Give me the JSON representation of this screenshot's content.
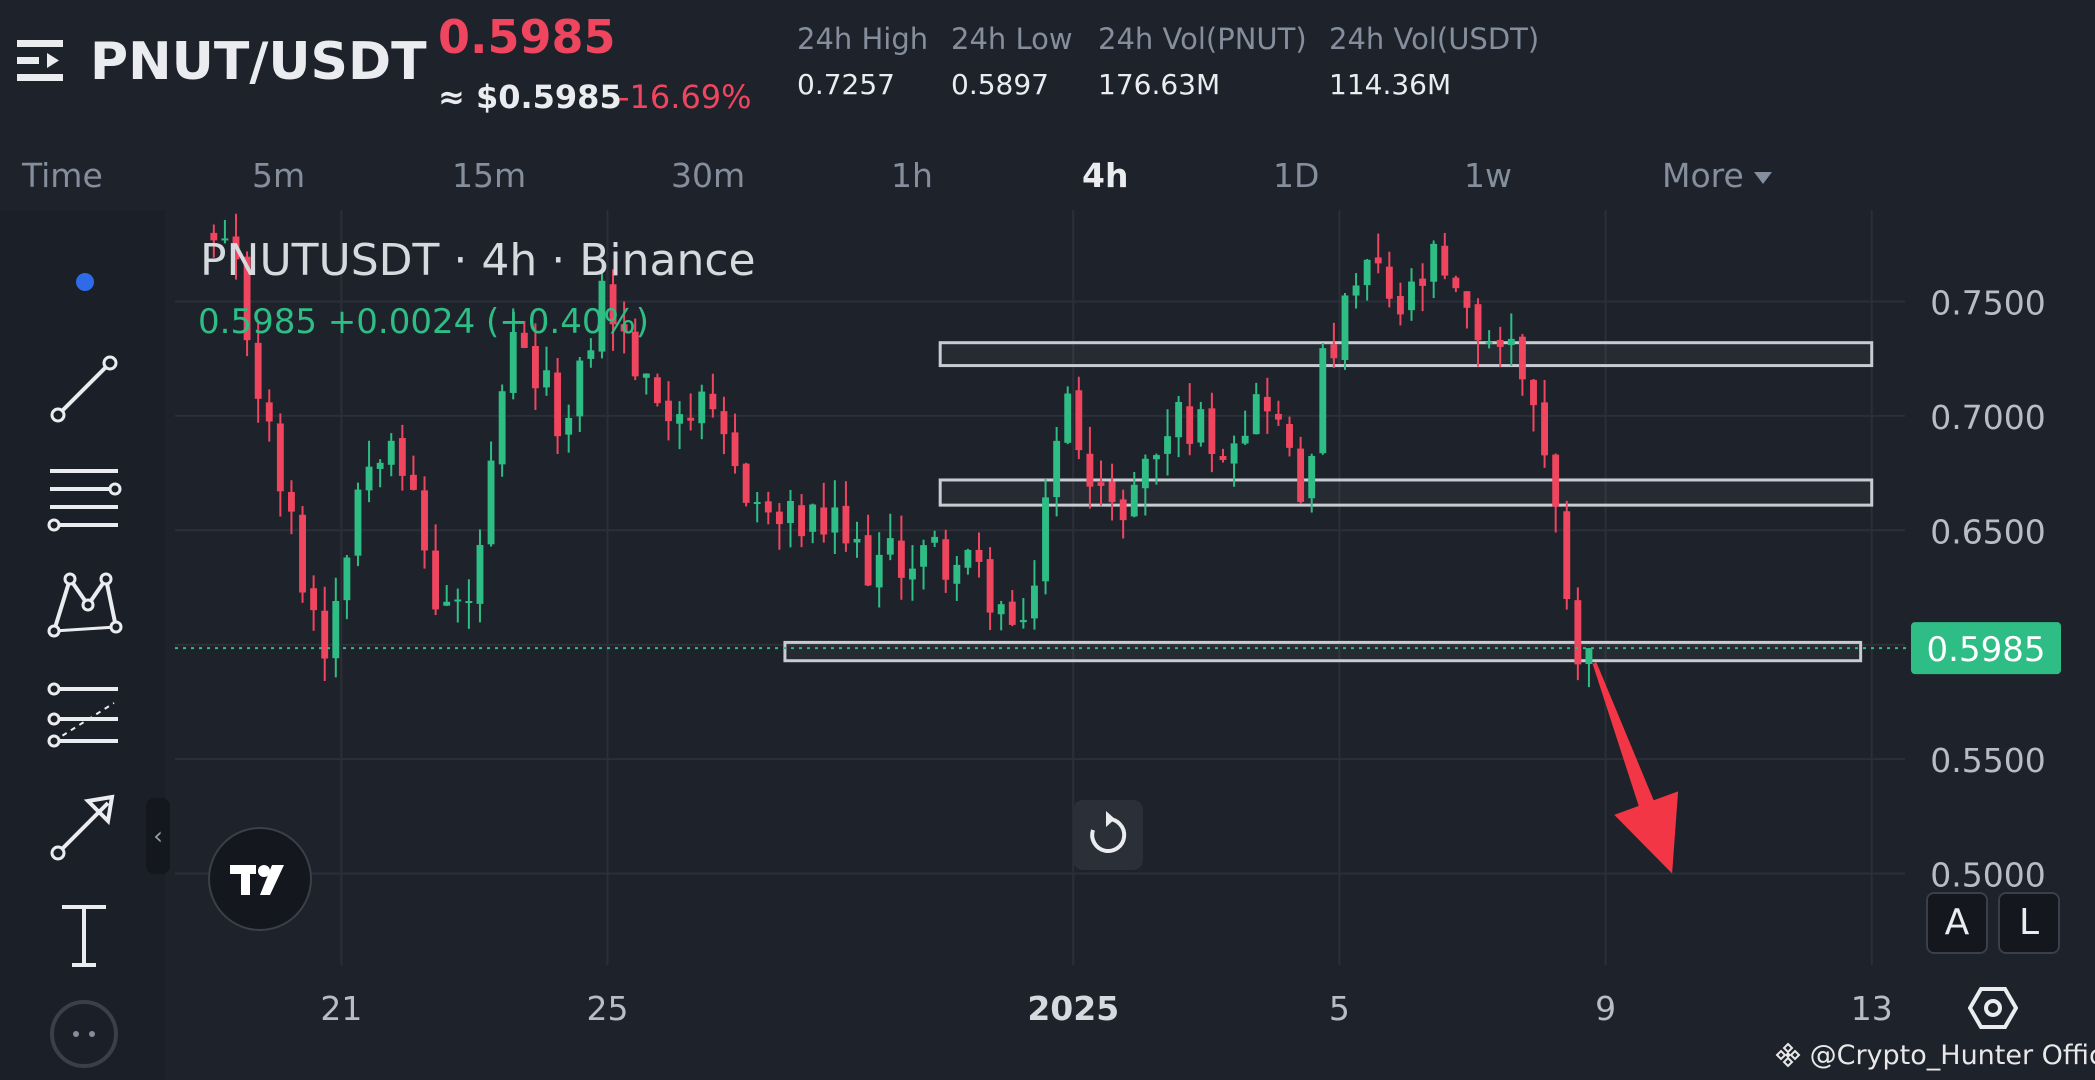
{
  "header": {
    "pair": "PNUT/USDT",
    "last_price": "0.5985",
    "approx_usd": "≈ $0.5985",
    "change_pct": "-16.69%",
    "stats": [
      {
        "label": "24h High",
        "value": "0.7257"
      },
      {
        "label": "24h Low",
        "value": "0.5897"
      },
      {
        "label": "24h Vol(PNUT)",
        "value": "176.63M"
      },
      {
        "label": "24h Vol(USDT)",
        "value": "114.36M"
      }
    ]
  },
  "timeframes": {
    "items": [
      "Time",
      "5m",
      "15m",
      "30m",
      "1h",
      "4h",
      "1D",
      "1w",
      "More"
    ],
    "active": "4h"
  },
  "overlay": {
    "title": "PNUTUSDT · 4h · Binance",
    "quote": "0.5985  +0.0024 (+0.40%)"
  },
  "icons": {
    "menu": "menu-icon",
    "tools": [
      "dot-marker-icon",
      "trend-line-icon",
      "parallel-lines-icon",
      "pattern-icon",
      "fib-tool-icon",
      "arrow-tool-icon",
      "text-tool-icon",
      "more-tools-icon"
    ],
    "reset": "reset-icon",
    "settings": "hexagon-settings-icon",
    "watermark_logo": "binance-logo-icon"
  },
  "buttons": {
    "auto": "A",
    "log": "L",
    "collapse": "‹"
  },
  "watermark": "@Crypto_Hunter Offici...",
  "colors": {
    "up": "#2ebd85",
    "down": "#f0455e",
    "background": "#1e222b",
    "grid": "#2b2f38",
    "zone_border": "#c8ccd2",
    "arrow": "#f23645"
  },
  "chart_data": {
    "type": "candlestick",
    "symbol": "PNUTUSDT",
    "interval": "4h",
    "exchange": "Binance",
    "y_ticks": [
      0.75,
      0.7,
      0.65,
      0.6,
      0.55,
      0.5
    ],
    "y_tick_labels": [
      "0.7500",
      "0.7000",
      "0.6500",
      "0.6000",
      "0.5500",
      "0.5000"
    ],
    "ylim": [
      0.46,
      0.79
    ],
    "x_ticks": [
      {
        "label": "21",
        "date": "2024-12-21"
      },
      {
        "label": "25",
        "date": "2024-12-25"
      },
      {
        "label": "2025",
        "date": "2025-01-01"
      },
      {
        "label": "5",
        "date": "2025-01-05"
      },
      {
        "label": "9",
        "date": "2025-01-09"
      },
      {
        "label": "13",
        "date": "2025-01-13"
      }
    ],
    "xlim": [
      "2024-12-18T12:00",
      "2025-01-13T12:00"
    ],
    "last_price": 0.5985,
    "last_price_label": "0.5985",
    "zones": [
      {
        "x_start": "2024-12-30T00:00",
        "x_end": "2025-01-13T00:00",
        "low": 0.722,
        "high": 0.732
      },
      {
        "x_start": "2024-12-30T00:00",
        "x_end": "2025-01-13T00:00",
        "low": 0.661,
        "high": 0.672
      },
      {
        "x_start": "2024-12-27T16:00",
        "x_end": "2025-01-12T20:00",
        "low": 0.593,
        "high": 0.601
      }
    ],
    "arrow": {
      "from": {
        "t": "2025-01-08T20:00",
        "price": 0.592
      },
      "to": {
        "t": "2025-01-10T00:00",
        "price": 0.5
      }
    },
    "keypoints": [
      [
        "2024-12-19T00:00",
        0.78
      ],
      [
        "2024-12-19T12:00",
        0.76
      ],
      [
        "2024-12-20T00:00",
        0.69
      ],
      [
        "2024-12-20T12:00",
        0.63
      ],
      [
        "2024-12-20T20:00",
        0.6
      ],
      [
        "2024-12-21T08:00",
        0.67
      ],
      [
        "2024-12-21T20:00",
        0.7
      ],
      [
        "2024-12-22T12:00",
        0.62
      ],
      [
        "2024-12-23T00:00",
        0.615
      ],
      [
        "2024-12-23T16:00",
        0.73
      ],
      [
        "2024-12-24T12:00",
        0.695
      ],
      [
        "2024-12-25T00:00",
        0.755
      ],
      [
        "2024-12-25T16:00",
        0.71
      ],
      [
        "2024-12-26T12:00",
        0.7
      ],
      [
        "2024-12-27T12:00",
        0.655
      ],
      [
        "2024-12-28T12:00",
        0.65
      ],
      [
        "2024-12-29T00:00",
        0.635
      ],
      [
        "2024-12-30T00:00",
        0.64
      ],
      [
        "2024-12-30T16:00",
        0.63
      ],
      [
        "2024-12-31T00:00",
        0.615
      ],
      [
        "2024-12-31T08:00",
        0.6
      ],
      [
        "2024-12-31T16:00",
        0.665
      ],
      [
        "2025-01-01T00:00",
        0.705
      ],
      [
        "2025-01-01T16:00",
        0.655
      ],
      [
        "2025-01-02T00:00",
        0.67
      ],
      [
        "2025-01-02T16:00",
        0.7
      ],
      [
        "2025-01-03T08:00",
        0.69
      ],
      [
        "2025-01-04T00:00",
        0.71
      ],
      [
        "2025-01-04T12:00",
        0.665
      ],
      [
        "2025-01-04T20:00",
        0.72
      ],
      [
        "2025-01-05T12:00",
        0.765
      ],
      [
        "2025-01-06T00:00",
        0.745
      ],
      [
        "2025-01-06T12:00",
        0.765
      ],
      [
        "2025-01-07T00:00",
        0.74
      ],
      [
        "2025-01-07T16:00",
        0.73
      ],
      [
        "2025-01-08T00:00",
        0.71
      ],
      [
        "2025-01-08T08:00",
        0.655
      ],
      [
        "2025-01-08T16:00",
        0.6
      ],
      [
        "2025-01-08T20:00",
        0.5985
      ]
    ]
  }
}
